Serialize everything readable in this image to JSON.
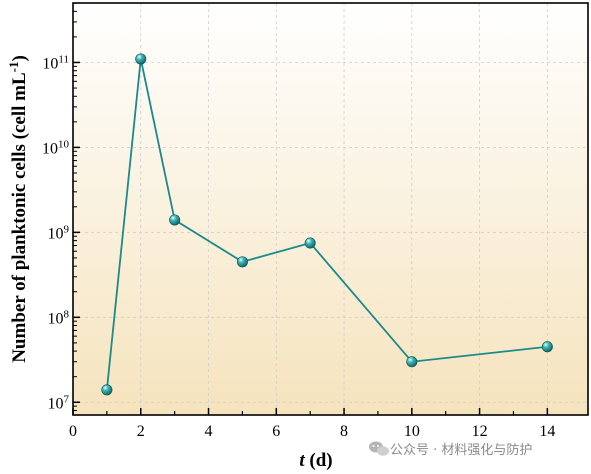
{
  "chart_data": {
    "type": "line",
    "x": [
      1,
      2,
      3,
      5,
      7,
      10,
      14
    ],
    "y": [
      14000000,
      110000000000,
      1400000000,
      450000000,
      750000000,
      30000000,
      45000000
    ],
    "xlabel": {
      "italic": "t",
      "rest": " (d)"
    },
    "ylabel": {
      "main": "Number of planktonic cells (cell mL",
      "sup": "-1",
      "close": ")"
    },
    "xlim": [
      0,
      15.2
    ],
    "xticks": [
      "0",
      "2",
      "4",
      "6",
      "8",
      "10",
      "12",
      "14"
    ],
    "ylim_log10": [
      6.85,
      11.7
    ],
    "yscale": "log",
    "yticks": [
      {
        "base": "10",
        "exp": "7"
      },
      {
        "base": "10",
        "exp": "8"
      },
      {
        "base": "10",
        "exp": "9"
      },
      {
        "base": "10",
        "exp": "10"
      },
      {
        "base": "10",
        "exp": "11"
      }
    ],
    "grid": true,
    "legend": "none",
    "colors": {
      "line": "#1a8a8a",
      "marker": "#1a9090",
      "background_top": "#ffffff",
      "background_bottom": "#f5e3bd"
    }
  },
  "watermark": {
    "icon": "wechat-icon",
    "text": "公众号 · 材料强化与防护"
  }
}
